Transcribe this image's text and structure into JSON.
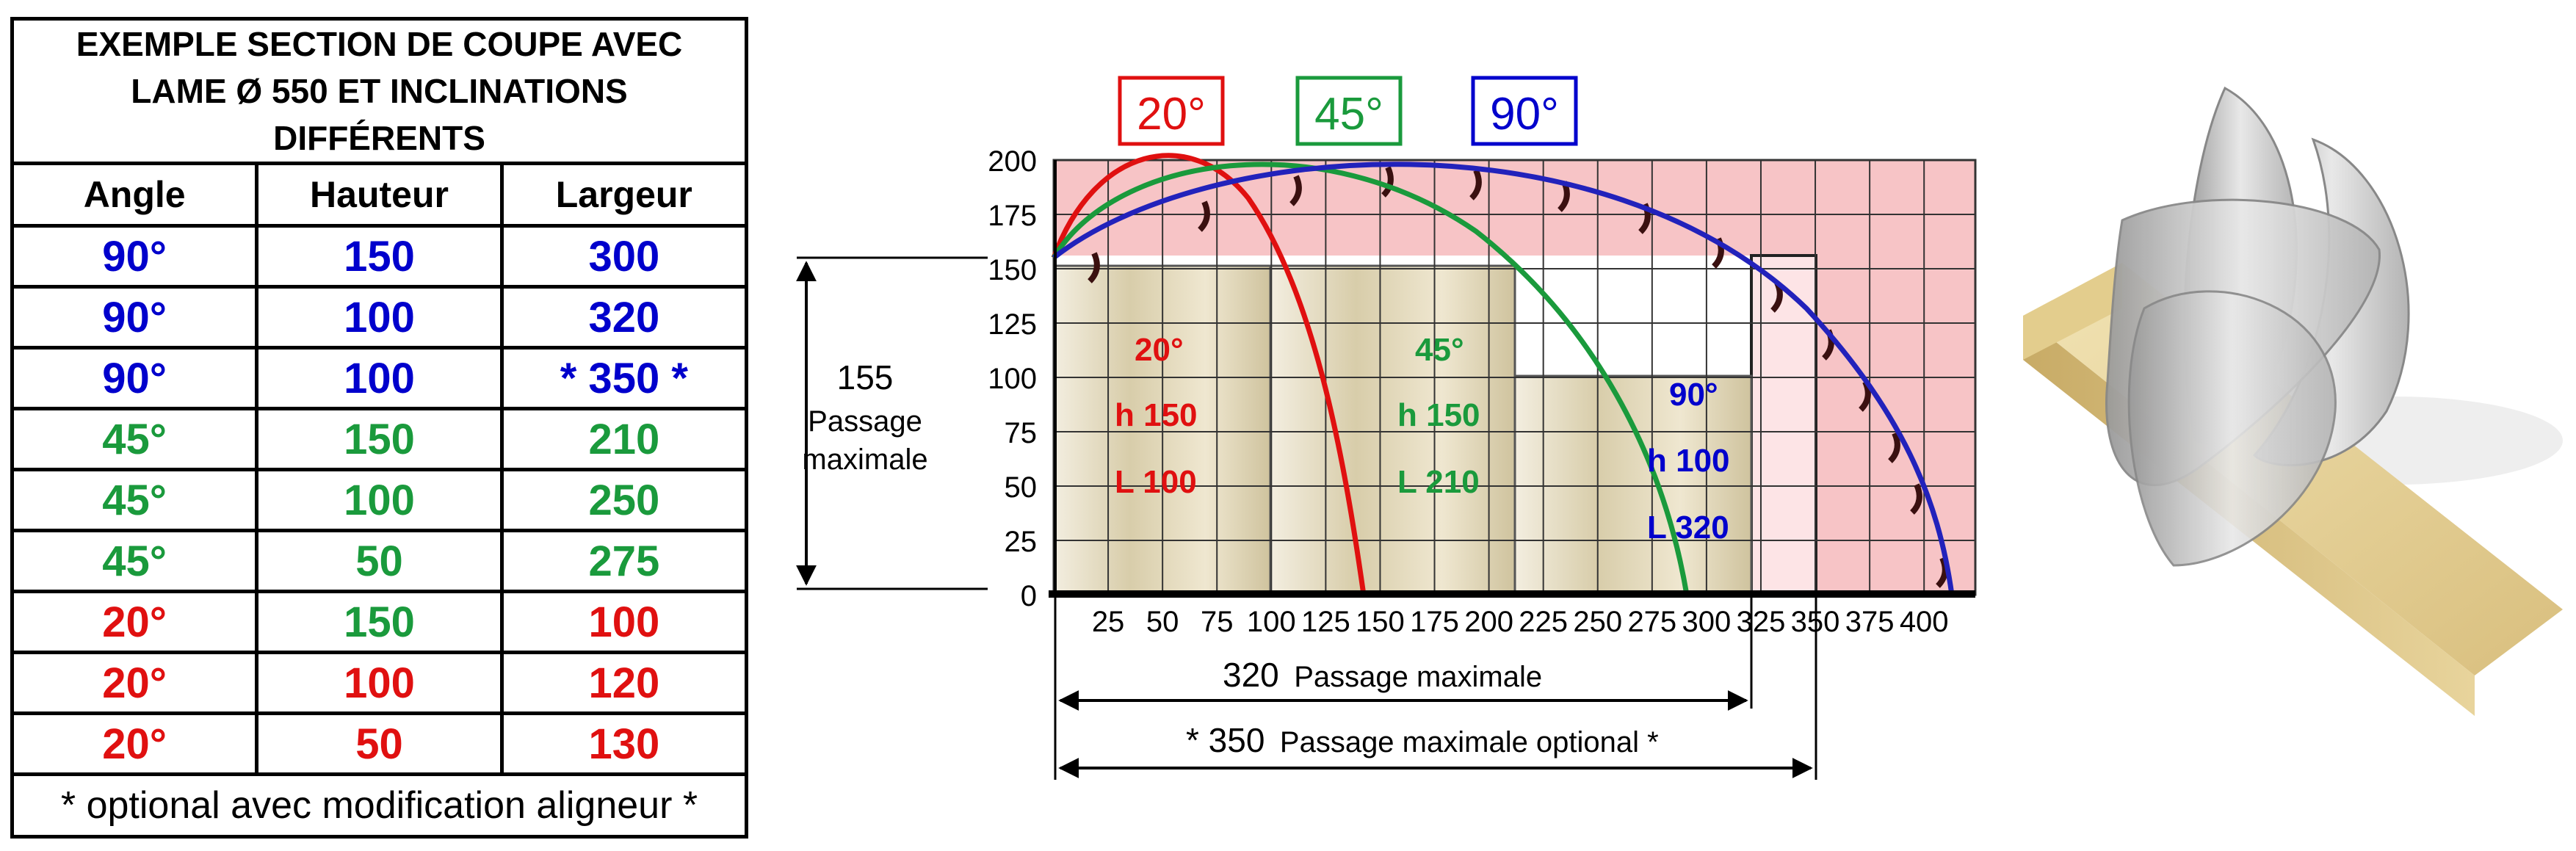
{
  "table": {
    "title": [
      "EXEMPLE SECTION DE COUPE AVEC",
      "LAME Ø 550 ET INCLINATIONS",
      "DIFFÉRENTS"
    ],
    "headers": [
      "Angle",
      "Hauteur",
      "Largeur"
    ],
    "rows": [
      {
        "angle": "90°",
        "hauteur": "150",
        "largeur": "300",
        "colors": [
          "#0000cc",
          "#0000cc",
          "#0000cc"
        ]
      },
      {
        "angle": "90°",
        "hauteur": "100",
        "largeur": "320",
        "colors": [
          "#0000cc",
          "#0000cc",
          "#0000cc"
        ]
      },
      {
        "angle": "90°",
        "hauteur": "100",
        "largeur": "* 350 *",
        "colors": [
          "#0000cc",
          "#0000cc",
          "#0000cc"
        ]
      },
      {
        "angle": "45°",
        "hauteur": "150",
        "largeur": "210",
        "colors": [
          "#1a9a3c",
          "#1a9a3c",
          "#1a9a3c"
        ]
      },
      {
        "angle": "45°",
        "hauteur": "100",
        "largeur": "250",
        "colors": [
          "#1a9a3c",
          "#1a9a3c",
          "#1a9a3c"
        ]
      },
      {
        "angle": "45°",
        "hauteur": "50",
        "largeur": "275",
        "colors": [
          "#1a9a3c",
          "#1a9a3c",
          "#1a9a3c"
        ]
      },
      {
        "angle": "20°",
        "hauteur": "150",
        "largeur": "100",
        "colors": [
          "#e01010",
          "#1a9a3c",
          "#e01010"
        ]
      },
      {
        "angle": "20°",
        "hauteur": "100",
        "largeur": "120",
        "colors": [
          "#e01010",
          "#e01010",
          "#e01010"
        ]
      },
      {
        "angle": "20°",
        "hauteur": "50",
        "largeur": "130",
        "colors": [
          "#e01010",
          "#e01010",
          "#e01010"
        ]
      }
    ],
    "footnote": "* optional avec modification aligneur *"
  },
  "diagram": {
    "legend": [
      {
        "label": "20°",
        "color": "#e01010"
      },
      {
        "label": "45°",
        "color": "#1a9a3c"
      },
      {
        "label": "90°",
        "color": "#0000cc"
      }
    ],
    "y_ticks": [
      "0",
      "25",
      "50",
      "75",
      "100",
      "125",
      "150",
      "175",
      "200"
    ],
    "x_ticks": [
      "25",
      "50",
      "75",
      "100",
      "125",
      "150",
      "175",
      "200",
      "225",
      "250",
      "275",
      "300",
      "325",
      "350",
      "375",
      "400"
    ],
    "xlim": [
      0,
      420
    ],
    "ylim": [
      0,
      200
    ],
    "left_dim": {
      "value": "155",
      "line1": "Passage",
      "line2": "maximale"
    },
    "dim1": {
      "value": "320",
      "text": "Passage maximale"
    },
    "dim2": {
      "value": "* 350",
      "text": "Passage maximale optional *"
    },
    "sections": [
      {
        "angle": "20°",
        "h": "h 150",
        "l": "L 100",
        "color": "#e01010"
      },
      {
        "angle": "45°",
        "h": "h 150",
        "l": "L 210",
        "color": "#1a9a3c"
      },
      {
        "angle": "90°",
        "h": "h 100",
        "l": "L 320",
        "color": "#0000cc"
      }
    ]
  }
}
